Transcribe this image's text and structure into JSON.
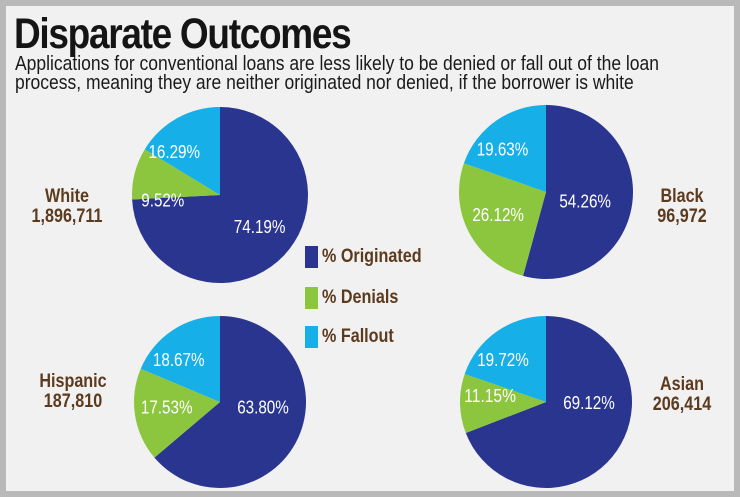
{
  "chart_data": {
    "type": "pie",
    "title": "Disparate Outcomes",
    "subtitle": "Applications for conventional loans are less likely to be denied or fall out of the loan process, meaning they are neither originated nor denied, if the borrower is white",
    "legend": [
      {
        "name": "% Originated",
        "color": "#2a3590"
      },
      {
        "name": "% Denials",
        "color": "#8cc63f"
      },
      {
        "name": "% Fallout",
        "color": "#16afe8"
      }
    ],
    "legend_placement": "center",
    "pies": [
      {
        "group": "White",
        "count": "1,896,711",
        "values": [
          74.19,
          9.52,
          16.29
        ],
        "labels": [
          "74.19%",
          "9.52%",
          "16.29%"
        ]
      },
      {
        "group": "Black",
        "count": "96,972",
        "values": [
          54.26,
          26.12,
          19.63
        ],
        "labels": [
          "54.26%",
          "26.12%",
          "19.63%"
        ]
      },
      {
        "group": "Hispanic",
        "count": "187,810",
        "values": [
          63.8,
          17.53,
          18.67
        ],
        "labels": [
          "63.80%",
          "17.53%",
          "18.67%"
        ]
      },
      {
        "group": "Asian",
        "count": "206,414",
        "values": [
          69.12,
          11.15,
          19.72
        ],
        "labels": [
          "69.12%",
          "11.15%",
          "19.72%"
        ]
      }
    ]
  }
}
